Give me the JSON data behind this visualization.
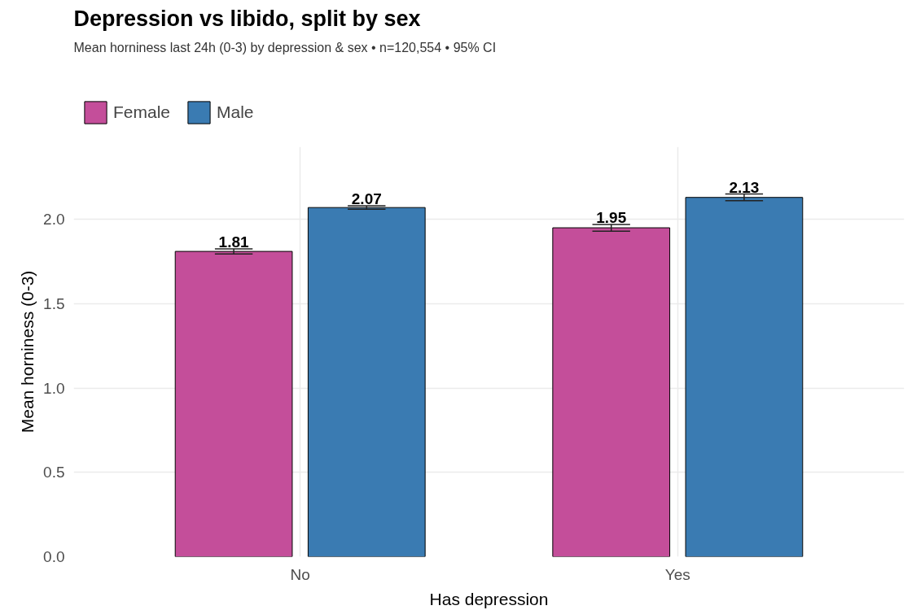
{
  "chart_data": {
    "type": "bar",
    "title": "Depression vs libido, split by sex",
    "subtitle": "Mean horniness last 24h (0-3) by depression & sex  •  n=120,554  •  95% CI",
    "xlabel": "Has depression",
    "ylabel": "Mean horniness (0-3)",
    "categories": [
      "No",
      "Yes"
    ],
    "series": [
      {
        "name": "Female",
        "color": "#c44e9a",
        "values": [
          1.81,
          1.95
        ],
        "errors": [
          0.015,
          0.02
        ]
      },
      {
        "name": "Male",
        "color": "#3a7bb2",
        "values": [
          2.07,
          2.13
        ],
        "errors": [
          0.01,
          0.02
        ]
      }
    ],
    "ylim": [
      0,
      2.43
    ],
    "yticks": [
      {
        "value": 0,
        "label": "0.0"
      },
      {
        "value": 0.5,
        "label": "0.5"
      },
      {
        "value": 1,
        "label": "1.0"
      },
      {
        "value": 1.5,
        "label": "1.5"
      },
      {
        "value": 2,
        "label": "2.0"
      }
    ],
    "grid": true,
    "legend": "top left",
    "data_labels": true
  }
}
